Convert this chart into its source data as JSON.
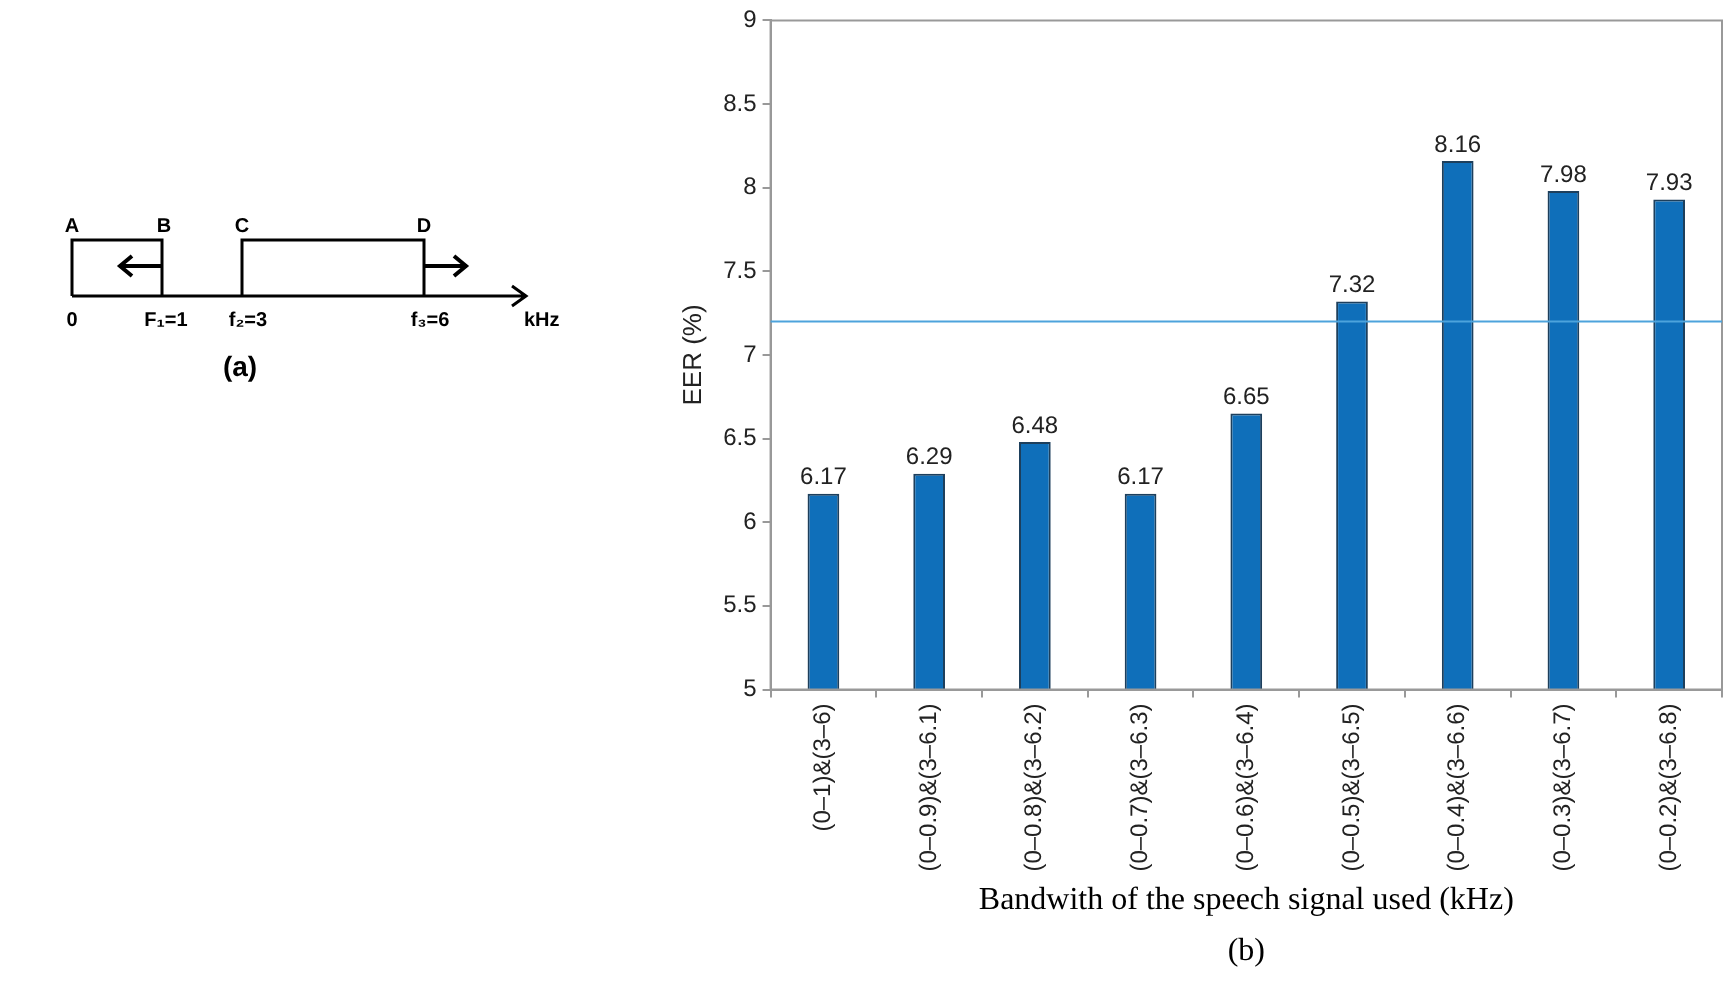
{
  "chart_data": [
    {
      "type": "other",
      "title": "(a)",
      "annotations": [
        "A",
        "B",
        "C",
        "D",
        "0",
        "F₁=1",
        "f₂=3",
        "f₃=6",
        "kHz"
      ]
    },
    {
      "type": "bar",
      "xlabel": "Bandwith of the speech signal used (kHz)",
      "ylabel": "EER (%)",
      "annotations": [
        "(b)"
      ],
      "categories": [
        "(0–1)&(3–6)",
        "(0–0.9)&(3–6.1)",
        "(0–0.8)&(3–6.2)",
        "(0–0.7)&(3–6.3)",
        "(0–0.6)&(3–6.4)",
        "(0–0.5)&(3–6.5)",
        "(0–0.4)&(3–6.6)",
        "(0–0.3)&(3–6.7)",
        "(0–0.2)&(3–6.8)"
      ],
      "values": [
        6.17,
        6.29,
        6.48,
        6.17,
        6.65,
        7.32,
        8.16,
        7.98,
        7.93
      ],
      "color": "#0f6fba",
      "data_labels": true,
      "ylim": [
        5,
        9
      ],
      "yticks": [
        5,
        5.5,
        6,
        6.5,
        7,
        7.5,
        8,
        8.5,
        9
      ],
      "grid": false,
      "legend": false,
      "ref_lines": [
        {
          "axis": "y",
          "value": 7.2,
          "color": "#4da3dc"
        }
      ]
    }
  ]
}
